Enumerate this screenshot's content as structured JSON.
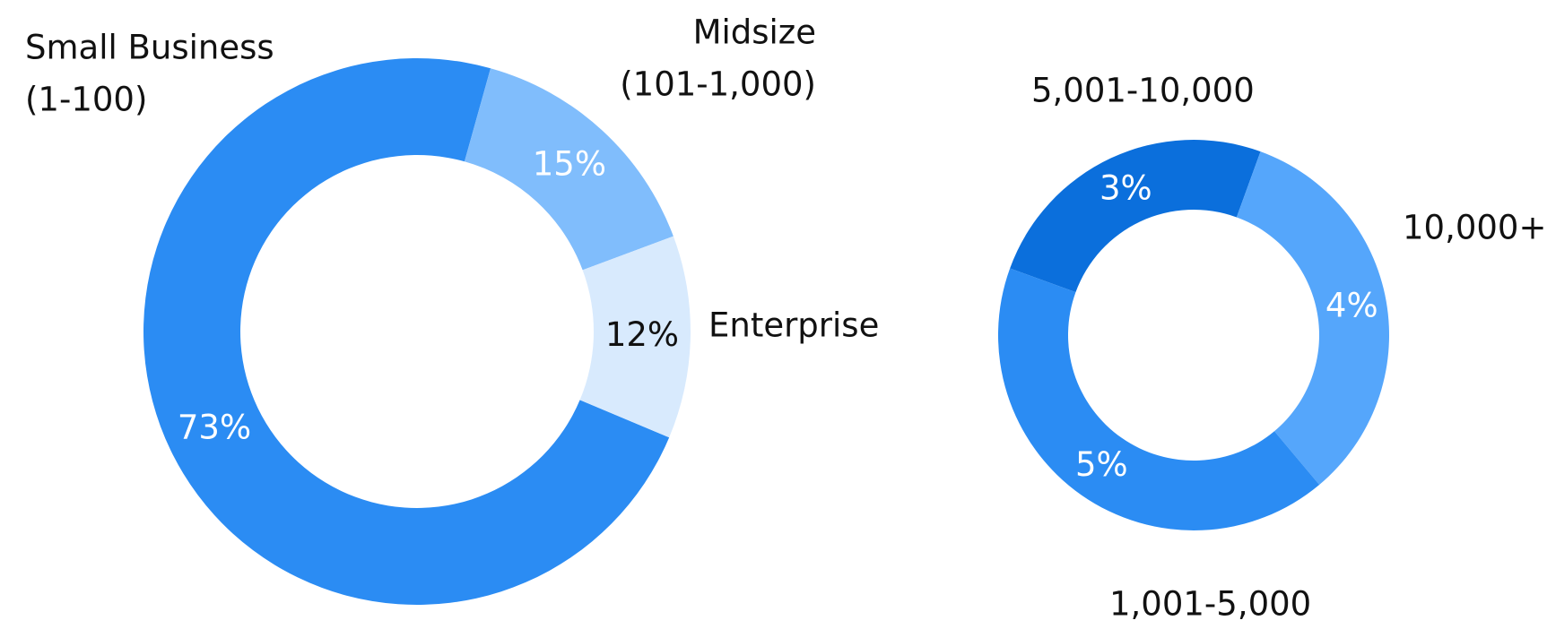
{
  "chart_data": [
    {
      "type": "donut",
      "categories": [
        [
          "Small Business",
          "(1-100)"
        ],
        [
          "Midsize",
          "(101-1,000)"
        ],
        [
          "Enterprise"
        ]
      ],
      "values": [
        73,
        15,
        12
      ],
      "value_labels": [
        "73%",
        "15%",
        "12%"
      ],
      "colors": [
        "#2b8cf3",
        "#80bdfc",
        "#d8eafd"
      ],
      "label_colors": [
        "#ffffff",
        "#ffffff",
        "#111111"
      ]
    },
    {
      "type": "donut",
      "categories": [
        [
          "5,001-10,000"
        ],
        [
          "10,000+"
        ],
        [
          "1,001-5,000"
        ]
      ],
      "values": [
        3,
        4,
        5
      ],
      "value_labels": [
        "3%",
        "4%",
        "5%"
      ],
      "colors": [
        "#0b6fdc",
        "#55a6fb",
        "#2b8cf3"
      ],
      "label_colors": [
        "#ffffff",
        "#ffffff",
        "#ffffff"
      ]
    }
  ]
}
